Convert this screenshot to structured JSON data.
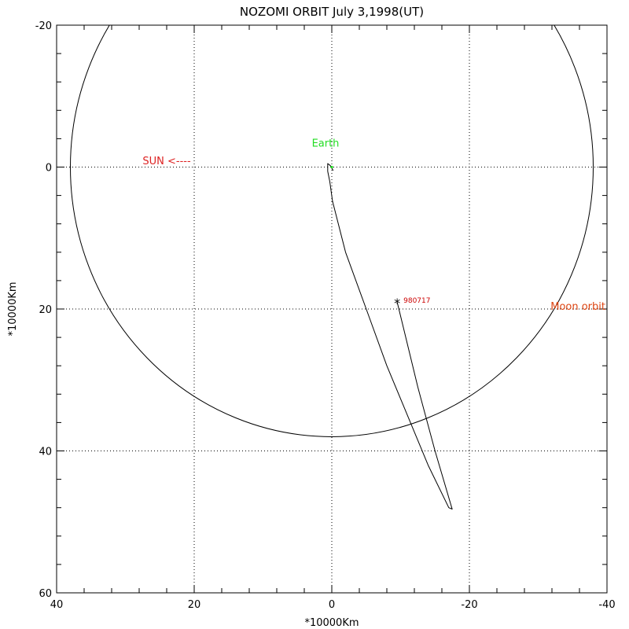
{
  "chart_data": {
    "type": "line",
    "title": "NOZOMI ORBIT July 3,1998(UT)",
    "xlabel": "*10000Km",
    "ylabel": "*10000Km",
    "xlim": [
      40,
      -40
    ],
    "ylim": [
      -20,
      60
    ],
    "x_ticks": [
      40,
      20,
      0,
      -20,
      -40
    ],
    "y_ticks": [
      -20,
      0,
      20,
      40,
      60
    ],
    "grid": true,
    "colors": {
      "axes": "#000000",
      "curve": "#000000",
      "earth": "#22dd22",
      "sun_label": "#dd2222",
      "moon_label": "#dd4411",
      "date_label": "#cc0000"
    },
    "series": [
      {
        "name": "Moon orbit",
        "shape": "circle",
        "center": [
          0,
          0
        ],
        "radius": 38
      },
      {
        "name": "",
        "x": [
          -0.2,
          0.2,
          0.6,
          0.6,
          0.3,
          -0.1,
          -2.0,
          -5.0,
          -8.0,
          -11.0,
          -14.0,
          -17.0,
          -17.5,
          -15.0,
          -12.5,
          -10.5,
          -9.5
        ],
        "y": [
          0.5,
          -0.2,
          -0.5,
          0.6,
          2.0,
          4.8,
          12.0,
          20.0,
          28.0,
          35.0,
          42.0,
          48.0,
          48.2,
          40.0,
          31.0,
          23.0,
          19.0
        ]
      }
    ],
    "annotations": {
      "earth": {
        "label": "Earth",
        "x": 0,
        "y": 0
      },
      "sun": {
        "label": "SUN <----",
        "x": 27.5,
        "y": -0.5
      },
      "moon": {
        "label": "Moon orbit",
        "x": -38.5,
        "y": 20
      },
      "marker": {
        "label": "980717",
        "symbol": "*",
        "x": -9.5,
        "y": 19
      }
    }
  }
}
